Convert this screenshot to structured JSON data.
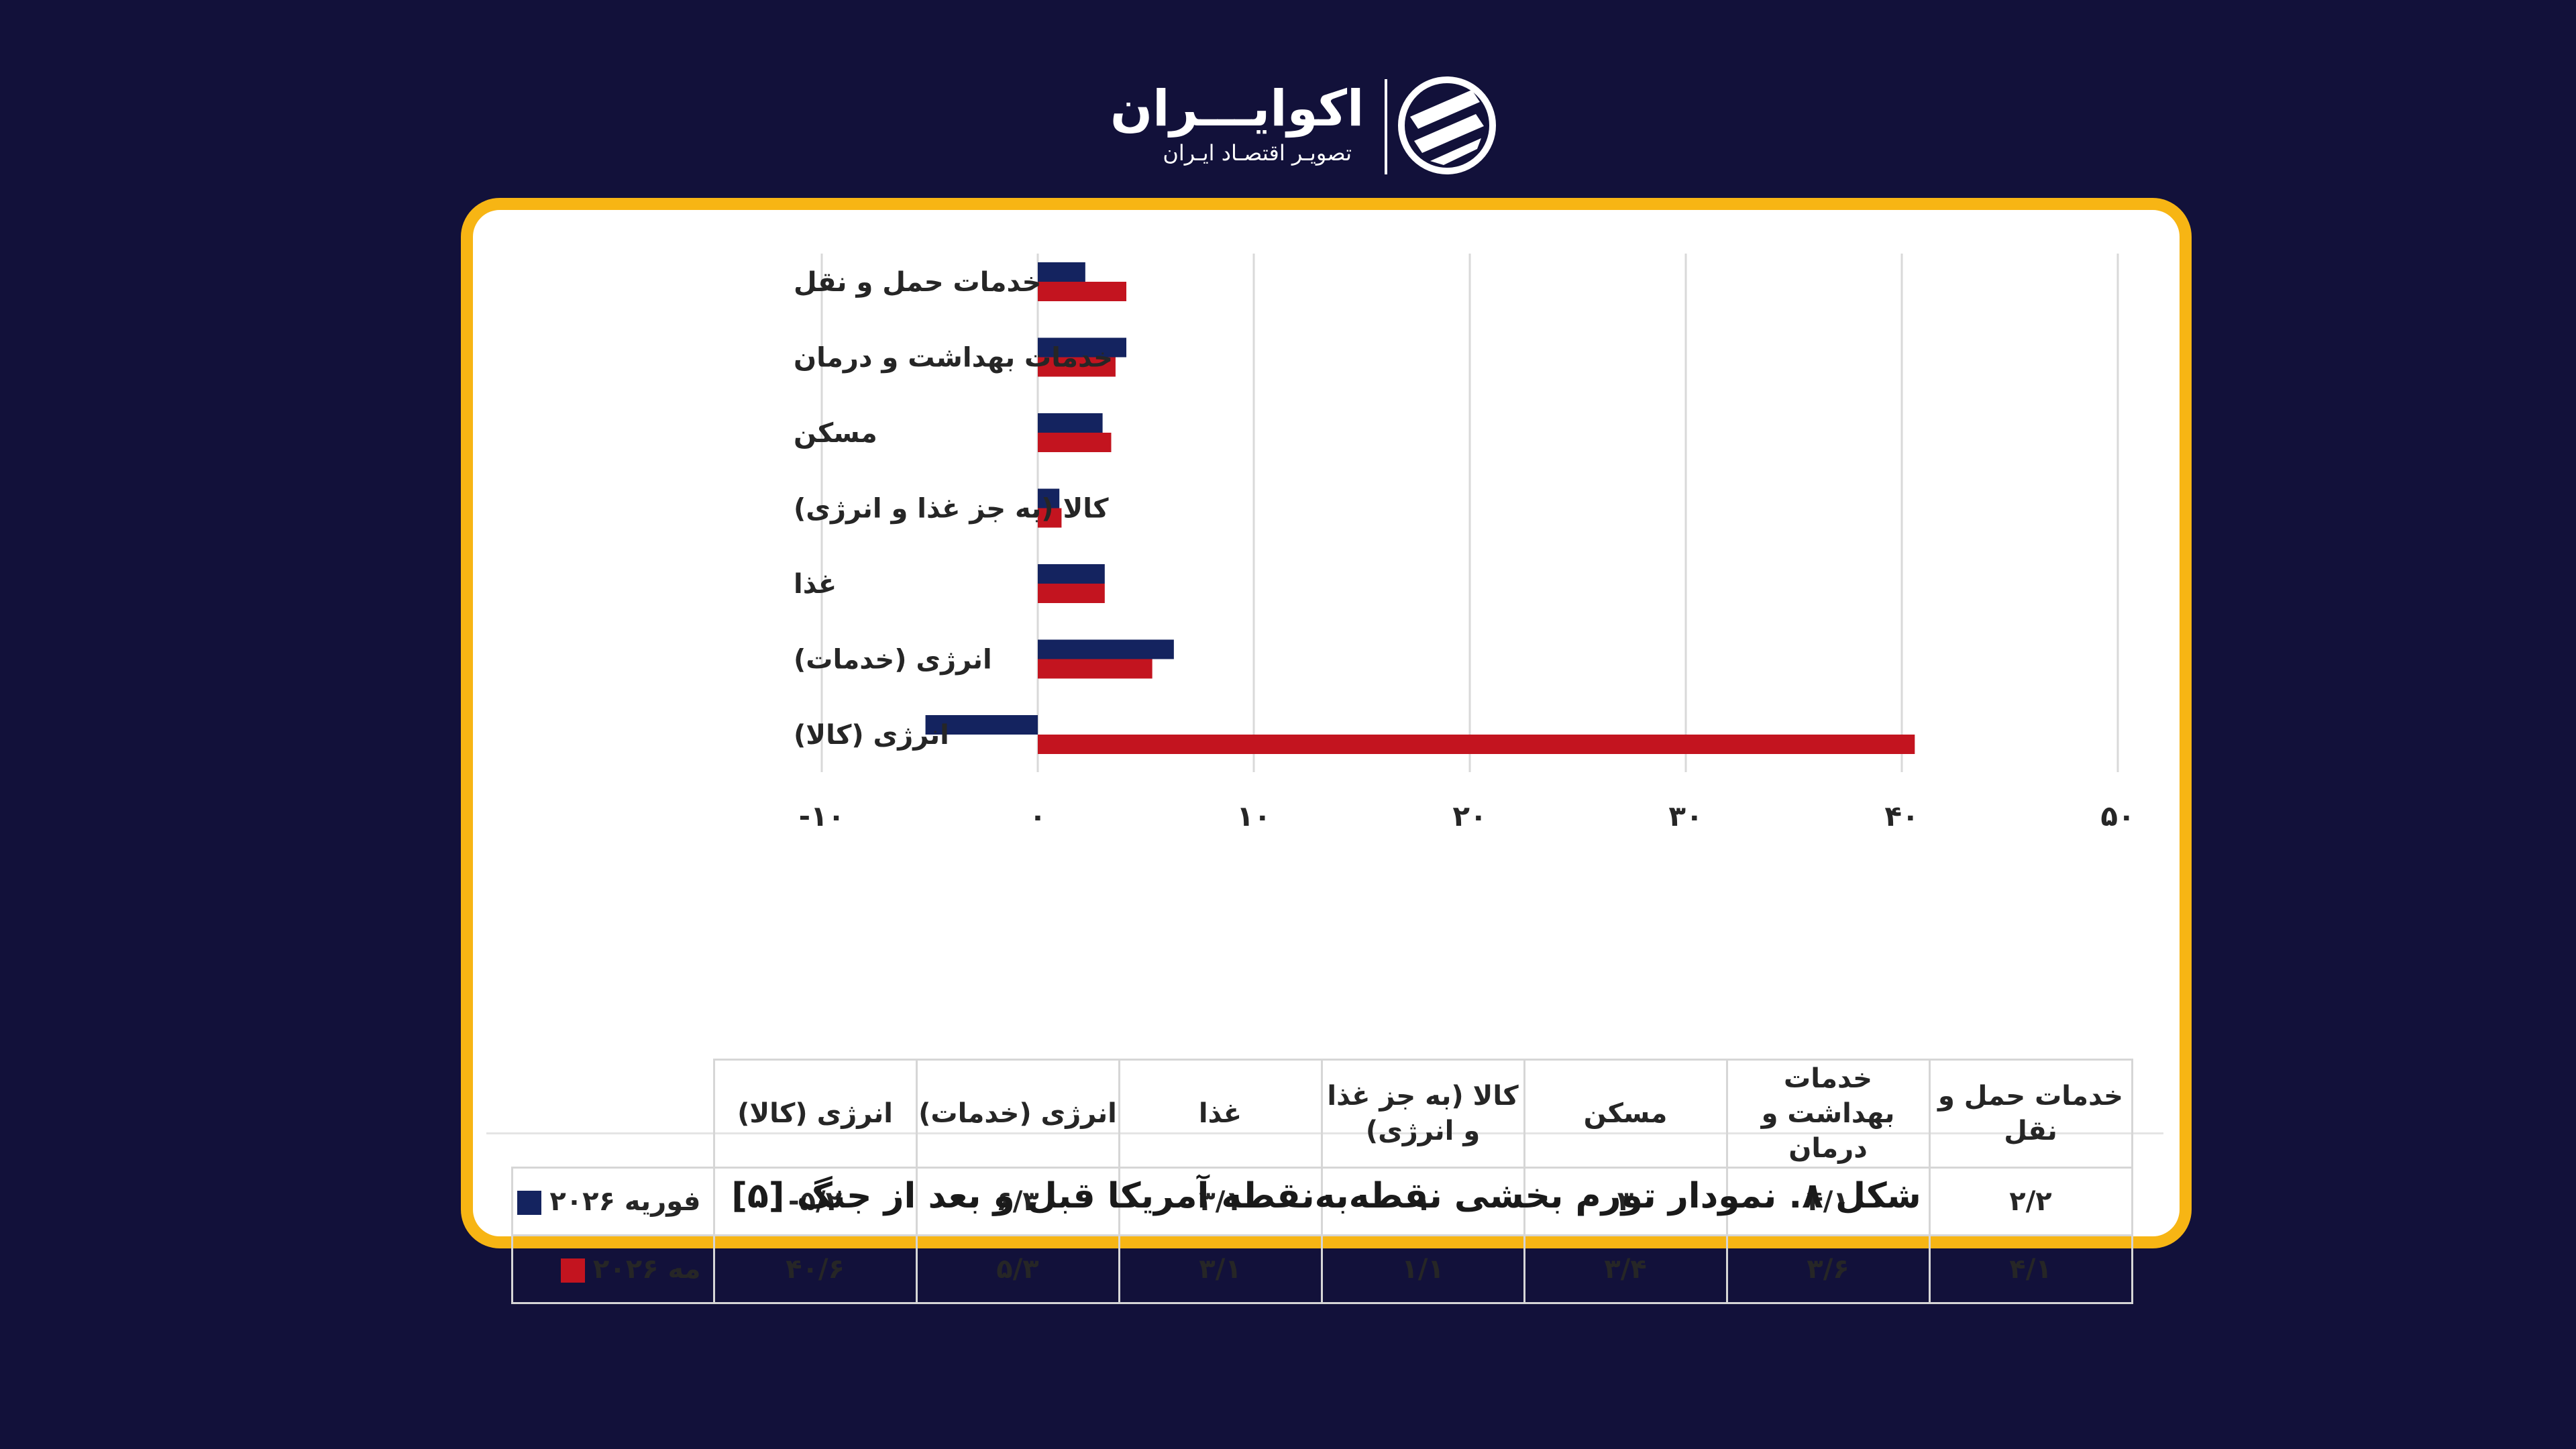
{
  "logo": {
    "brand": "اکوایـــران",
    "tagline": "تصویـر اقتصـاد ایـران"
  },
  "caption": "شکل ۸. نمودار تورم بخشی نقطه‌به‌نقطه آمریکا قبل و بعد از جنگ [۵]",
  "colors": {
    "background": "#12113a",
    "frame": "#f7b514",
    "feb_2026": "#14235f",
    "may_2026": "#c3141f"
  },
  "chart_data": {
    "type": "bar",
    "orientation": "horizontal",
    "categories": [
      "خدمات حمل و نقل",
      "خدمات بهداشت و درمان",
      "مسکن",
      "کالا (به جز غذا و انرژی)",
      "غذا",
      "انرژی (خدمات)",
      "انرژی (کالا)"
    ],
    "series": [
      {
        "name": "فوریه ۲۰۲۶",
        "color": "#14235f",
        "values": [
          2.2,
          4.1,
          3,
          1,
          3.1,
          6.3,
          -5.2
        ]
      },
      {
        "name": "مه ۲۰۲۶",
        "color": "#c3141f",
        "values": [
          4.1,
          3.6,
          3.4,
          1.1,
          3.1,
          5.3,
          40.6
        ]
      }
    ],
    "xlim": [
      -10,
      50
    ],
    "x_ticks": [
      -10,
      0,
      10,
      20,
      30,
      40,
      50
    ],
    "x_tick_labels": [
      "-۱۰",
      "۰",
      "۱۰",
      "۲۰",
      "۳۰",
      "۴۰",
      "۵۰"
    ],
    "grid": true,
    "legend": "bottom-left, inside data table",
    "table": {
      "headers": [
        "خدمات حمل و نقل",
        "خدمات بهداشت و درمان",
        "مسکن",
        "کالا (به جز غذا و انرژی)",
        "غذا",
        "انرژی (خدمات)",
        "انرژی (کالا)"
      ],
      "rows": [
        {
          "label": "فوریه ۲۰۲۶",
          "color": "#14235f",
          "cells": [
            "۲/۲",
            "۴/۱",
            "۳",
            "۱",
            "۳/۱",
            "۶/۳",
            "-۵/۲"
          ]
        },
        {
          "label": "مه ۲۰۲۶",
          "color": "#c3141f",
          "cells": [
            "۴/۱",
            "۳/۶",
            "۳/۴",
            "۱/۱",
            "۳/۱",
            "۵/۳",
            "۴۰/۶"
          ]
        }
      ]
    }
  }
}
